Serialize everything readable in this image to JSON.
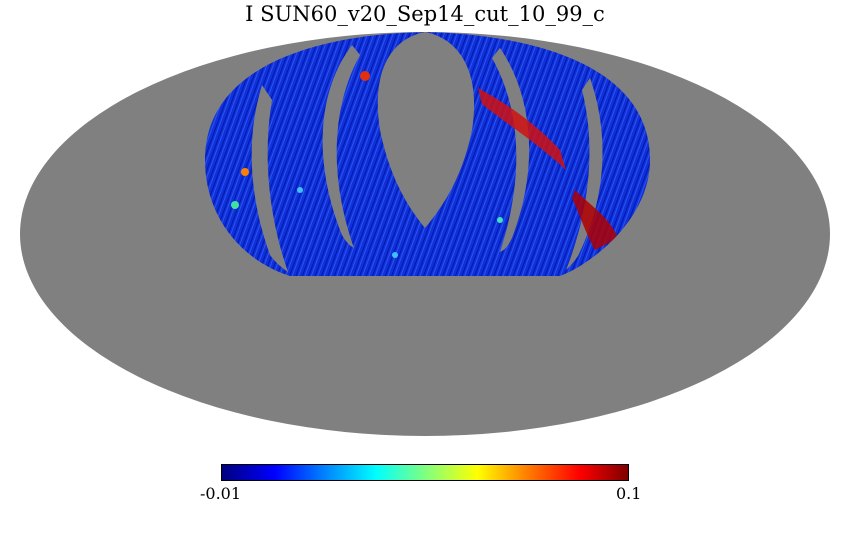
{
  "title": "I SUN60_v20_Sep14_cut_10_99_c",
  "colorbar": {
    "min_label": "-0.01",
    "max_label": "0.1",
    "colormap": "jet",
    "colors": [
      "#00007f",
      "#0000ff",
      "#0080ff",
      "#00ffff",
      "#80ff80",
      "#ffff00",
      "#ff8000",
      "#ff0000",
      "#7f0000"
    ]
  },
  "map": {
    "projection": "mollweide",
    "unobserved_color": "#808080",
    "background_color": "#ffffff"
  }
}
